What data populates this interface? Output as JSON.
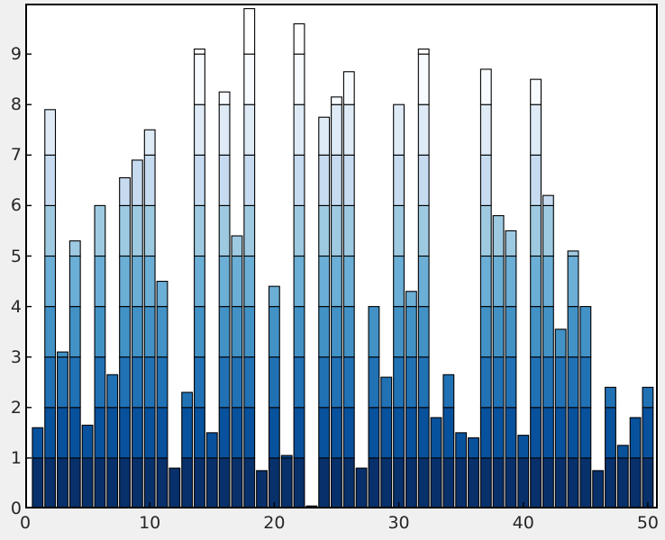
{
  "figure": {
    "background": "#f0f0f0",
    "plot_background": "#ffffff",
    "axis_color": "#000000",
    "tick_label_color": "#262626"
  },
  "chart_data": {
    "type": "bar",
    "title": "",
    "xlabel": "",
    "ylabel": "",
    "x": [
      1,
      2,
      3,
      4,
      5,
      6,
      7,
      8,
      9,
      10,
      11,
      12,
      13,
      14,
      15,
      16,
      17,
      18,
      19,
      20,
      21,
      22,
      23,
      24,
      25,
      26,
      27,
      28,
      29,
      30,
      31,
      32,
      33,
      34,
      35,
      36,
      37,
      38,
      39,
      40,
      41,
      42,
      43,
      44,
      45,
      46,
      47,
      48,
      49,
      50
    ],
    "values": [
      1.6,
      7.9,
      3.1,
      5.3,
      1.65,
      6.0,
      2.65,
      6.55,
      6.9,
      7.5,
      4.5,
      0.8,
      2.3,
      9.1,
      1.5,
      8.25,
      5.4,
      9.9,
      0.75,
      4.4,
      1.05,
      9.6,
      0.05,
      7.75,
      8.15,
      8.65,
      0.8,
      4.0,
      2.6,
      8.0,
      4.3,
      9.1,
      1.8,
      2.65,
      1.5,
      1.4,
      8.7,
      5.8,
      5.5,
      1.45,
      8.5,
      6.2,
      3.55,
      5.1,
      4.0,
      0.75,
      2.4,
      1.25,
      1.8,
      2.4
    ],
    "xlim": [
      0,
      50.8
    ],
    "ylim": [
      0,
      10
    ],
    "bar_width": 0.85,
    "x_ticks": [
      0,
      10,
      20,
      30,
      40,
      50
    ],
    "y_ticks": [
      0,
      1,
      2,
      3,
      4,
      5,
      6,
      7,
      8,
      9
    ],
    "band_colors": [
      "#08306b",
      "#08519c",
      "#2171b5",
      "#4292c6",
      "#6baed6",
      "#9ecae1",
      "#c6dbef",
      "#deebf7",
      "#f7fbff",
      "#ffffff"
    ],
    "edge_color": "#000000",
    "grid": false,
    "legend": null,
    "note": "Stacked-shade bar chart: each bar is segmented into unit-height bands, colored dark navy at the bottom grading to near-white at the top."
  }
}
